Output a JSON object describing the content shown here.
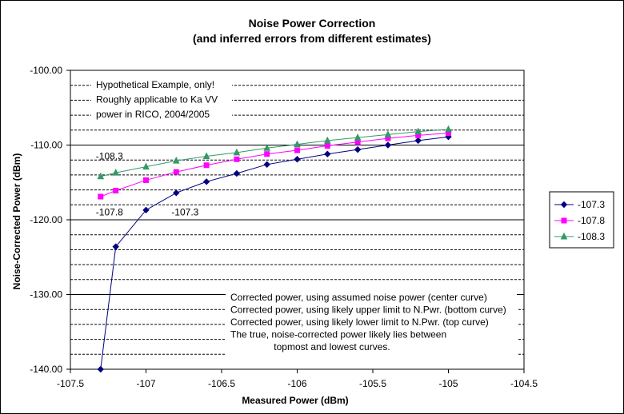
{
  "chart_data": {
    "type": "line",
    "title": "Noise Power Correction",
    "subtitle": "(and inferred errors from different estimates)",
    "xlabel": "Measured Power (dBm)",
    "ylabel": "Noise-Corrected Power (dBm)",
    "xlim": [
      -107.5,
      -104.5
    ],
    "ylim": [
      -140,
      -100
    ],
    "x_ticks": [
      "-107.5",
      "-107",
      "-106.5",
      "-106",
      "-105.5",
      "-105",
      "-104.5"
    ],
    "y_ticks": [
      "-140.00",
      "-130.00",
      "-120.00",
      "-110.00",
      "-100.00"
    ],
    "grid": "horizontal major solid, minor dashed",
    "legend_position": "right",
    "series": [
      {
        "name": "-107.3",
        "color": "#000080",
        "marker": "diamond",
        "x": [
          -107.3,
          -107.2,
          -107.0,
          -106.8,
          -106.6,
          -106.4,
          -106.2,
          -106.0,
          -105.8,
          -105.6,
          -105.4,
          -105.2,
          -105.0
        ],
        "y": [
          -140.0,
          -123.6,
          -118.7,
          -116.4,
          -114.9,
          -113.8,
          -112.6,
          -111.9,
          -111.2,
          -110.6,
          -110.0,
          -109.4,
          -108.9
        ]
      },
      {
        "name": "-107.8",
        "color": "#FF00FF",
        "marker": "square",
        "x": [
          -107.3,
          -107.2,
          -107.0,
          -106.8,
          -106.6,
          -106.4,
          -106.2,
          -106.0,
          -105.8,
          -105.6,
          -105.4,
          -105.2,
          -105.0
        ],
        "y": [
          -116.9,
          -116.1,
          -114.7,
          -113.6,
          -112.7,
          -111.9,
          -111.2,
          -110.7,
          -110.1,
          -109.6,
          -109.1,
          -108.7,
          -108.4
        ]
      },
      {
        "name": "-108.3",
        "color": "#339966",
        "marker": "triangle",
        "x": [
          -107.3,
          -107.2,
          -107.0,
          -106.8,
          -106.6,
          -106.4,
          -106.2,
          -106.0,
          -105.8,
          -105.6,
          -105.4,
          -105.2,
          -105.0
        ],
        "y": [
          -114.2,
          -113.7,
          -112.9,
          -112.1,
          -111.5,
          -111.0,
          -110.4,
          -109.9,
          -109.4,
          -109.0,
          -108.6,
          -108.2,
          -107.9
        ]
      }
    ],
    "annotations": [
      {
        "text": "-108.3",
        "x": -107.3,
        "y": -111.5
      },
      {
        "text": "-107.8",
        "x": -107.3,
        "y": -119.0
      },
      {
        "text": "-107.3",
        "x": -106.8,
        "y": -119.0
      }
    ],
    "notes": {
      "top": [
        "Hypothetical Example, only!",
        "Roughly applicable to Ka VV",
        "power in RICO, 2004/2005"
      ],
      "bottom": [
        "Corrected power, using assumed noise power (center curve)",
        "Corrected power, using likely upper limit to N.Pwr. (bottom curve)",
        "Corrected power, using likely lower limit to N.Pwr. (top curve)",
        "The true, noise-corrected power likely lies between",
        "topmost and lowest curves."
      ]
    }
  }
}
